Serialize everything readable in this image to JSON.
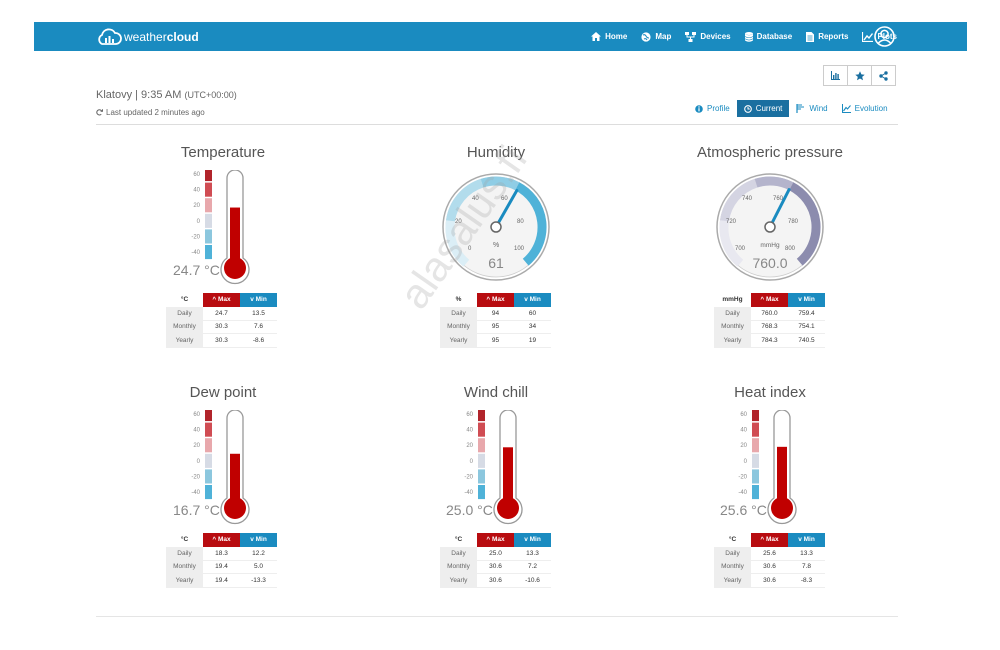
{
  "app": {
    "brand_light": "weather",
    "brand_bold": "cloud"
  },
  "nav": [
    {
      "label": "Home",
      "icon": "home-icon"
    },
    {
      "label": "Map",
      "icon": "globe-icon"
    },
    {
      "label": "Devices",
      "icon": "devices-icon"
    },
    {
      "label": "Database",
      "icon": "database-icon"
    },
    {
      "label": "Reports",
      "icon": "document-icon"
    },
    {
      "label": "Plots",
      "icon": "chart-icon"
    }
  ],
  "station": {
    "name_time": "Klatovy | 9:35 AM",
    "tz": "(UTC+00:00)",
    "updated": "Last updated 2 minutes ago"
  },
  "tabs": [
    {
      "label": "Profile",
      "icon": "info-icon",
      "active": false
    },
    {
      "label": "Current",
      "icon": "clock-icon",
      "active": true
    },
    {
      "label": "Wind",
      "icon": "wind-icon",
      "active": false
    },
    {
      "label": "Evolution",
      "icon": "line-chart-icon",
      "active": false
    }
  ],
  "colors": {
    "brand": "#1a8bc0",
    "max": "#b80c10",
    "min": "#1a8bc0",
    "mercury": "#c00000"
  },
  "table_headers": {
    "max": "Max",
    "min": "Min"
  },
  "row_labels": [
    "Daily",
    "Monthly",
    "Yearly"
  ],
  "temperature": {
    "title": "Temperature",
    "value_text": "24.7 °C",
    "value": 24.7,
    "unit": "°C",
    "scale": [
      "60",
      "40",
      "20",
      "0",
      "-20",
      "-40"
    ],
    "rows": [
      [
        "24.7",
        "13.5"
      ],
      [
        "30.3",
        "7.6"
      ],
      [
        "30.3",
        "-8.6"
      ]
    ]
  },
  "humidity": {
    "title": "Humidity",
    "value_text": "61",
    "value": 61,
    "unit": "%",
    "ticks": [
      "0",
      "20",
      "40",
      "60",
      "80",
      "100"
    ],
    "rows": [
      [
        "94",
        "60"
      ],
      [
        "95",
        "34"
      ],
      [
        "95",
        "19"
      ]
    ]
  },
  "pressure": {
    "title": "Atmospheric pressure",
    "value_text": "760.0",
    "value": 760.0,
    "unit": "mmHg",
    "ticks": [
      "700",
      "720",
      "740",
      "760",
      "780",
      "800"
    ],
    "rows": [
      [
        "760.0",
        "759.4"
      ],
      [
        "768.3",
        "754.1"
      ],
      [
        "784.3",
        "740.5"
      ]
    ]
  },
  "dewpoint": {
    "title": "Dew point",
    "value_text": "16.7 °C",
    "value": 16.7,
    "unit": "°C",
    "scale": [
      "60",
      "40",
      "20",
      "0",
      "-20",
      "-40"
    ],
    "rows": [
      [
        "18.3",
        "12.2"
      ],
      [
        "19.4",
        "5.0"
      ],
      [
        "19.4",
        "-13.3"
      ]
    ]
  },
  "windchill": {
    "title": "Wind chill",
    "value_text": "25.0 °C",
    "value": 25.0,
    "unit": "°C",
    "scale": [
      "60",
      "40",
      "20",
      "0",
      "-20",
      "-40"
    ],
    "rows": [
      [
        "25.0",
        "13.3"
      ],
      [
        "30.6",
        "7.2"
      ],
      [
        "30.6",
        "-10.6"
      ]
    ]
  },
  "heatindex": {
    "title": "Heat index",
    "value_text": "25.6 °C",
    "value": 25.6,
    "unit": "°C",
    "scale": [
      "60",
      "40",
      "20",
      "0",
      "-20",
      "-40"
    ],
    "rows": [
      [
        "25.6",
        "13.3"
      ],
      [
        "30.6",
        "7.8"
      ],
      [
        "30.6",
        "-8.3"
      ]
    ]
  },
  "watermark": "alasalus.fi"
}
